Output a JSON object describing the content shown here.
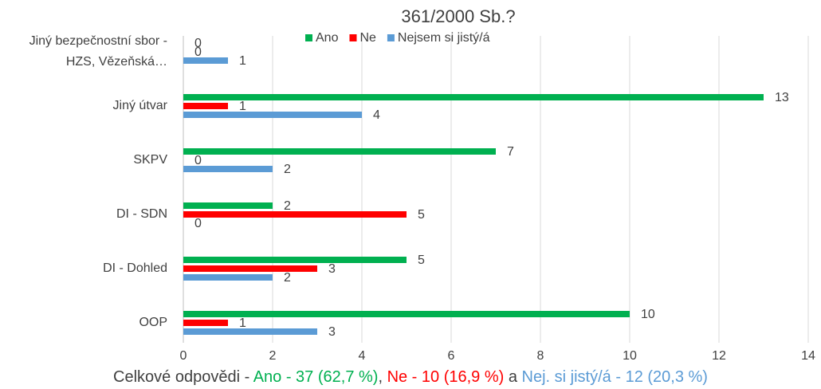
{
  "chart_data": {
    "type": "bar",
    "orientation": "horizontal",
    "title": "361/2000 Sb.?",
    "categories": [
      "OOP",
      "DI - Dohled",
      "DI - SDN",
      "SKPV",
      "Jiný útvar",
      "Jiný bezpečnostní sbor - HZS, Vězeňská…"
    ],
    "series": [
      {
        "name": "Ano",
        "color": "#00b050",
        "values": [
          10,
          5,
          2,
          7,
          13,
          0
        ]
      },
      {
        "name": "Ne",
        "color": "#ff0000",
        "values": [
          1,
          3,
          5,
          0,
          1,
          0
        ]
      },
      {
        "name": "Nejsem si jistý/á",
        "color": "#5b9bd5",
        "values": [
          3,
          2,
          0,
          2,
          4,
          1
        ]
      }
    ],
    "xlim": [
      0,
      14
    ],
    "xticks": [
      0,
      2,
      4,
      6,
      8,
      10,
      12,
      14
    ],
    "grid": true,
    "legend": "top",
    "footnote_parts": [
      {
        "text": "Celkové odpovědi - ",
        "color": "#404040"
      },
      {
        "text": "Ano - 37 (62,7 %)",
        "color": "#00b050"
      },
      {
        "text": ", ",
        "color": "#404040"
      },
      {
        "text": "Ne - 10 (16,9 %)",
        "color": "#ff0000"
      },
      {
        "text": " a ",
        "color": "#404040"
      },
      {
        "text": "Nej. si jistý/á - 12 (20,3 %)",
        "color": "#5b9bd5"
      }
    ]
  }
}
